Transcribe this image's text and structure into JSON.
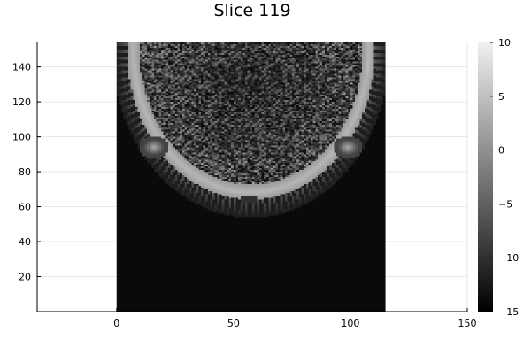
{
  "chart_data": {
    "type": "heatmap",
    "title": "Slice 119",
    "xlabel": "",
    "ylabel": "",
    "xlim": [
      -34,
      150
    ],
    "ylim": [
      0,
      154
    ],
    "image_extent": {
      "x": [
        0,
        115
      ],
      "y": [
        0,
        154
      ]
    },
    "x_ticks": [
      0,
      50,
      100,
      150
    ],
    "y_ticks": [
      20,
      40,
      60,
      80,
      100,
      120,
      140
    ],
    "grid": true,
    "colormap": "grays",
    "colorbar": {
      "range": [
        -15,
        10
      ],
      "ticks": [
        10,
        5,
        0,
        -5,
        -10,
        -15
      ],
      "tick_labels": [
        "10",
        "5",
        "0",
        "−5",
        "−10",
        "−15"
      ]
    },
    "background_value": -14,
    "structures": [
      {
        "name": "skull-ring",
        "center": [
          57.5,
          150
        ],
        "radius_x": 53,
        "radius_y": 86,
        "value": 4
      },
      {
        "name": "inner-texture",
        "center": [
          57.5,
          128
        ],
        "radius_x": 47,
        "radius_y": 56,
        "value_range": [
          -14,
          -2
        ]
      },
      {
        "name": "left-bulge",
        "center": [
          16,
          94
        ],
        "value": 3
      },
      {
        "name": "right-bulge",
        "center": [
          99,
          94
        ],
        "value": 3
      },
      {
        "name": "small-square",
        "x": [
          53,
          60
        ],
        "y": [
          62,
          66
        ],
        "value": -10
      }
    ]
  },
  "colors": {
    "axis": "#000000",
    "grid": "#e6e6e6",
    "background": "#ffffff"
  }
}
